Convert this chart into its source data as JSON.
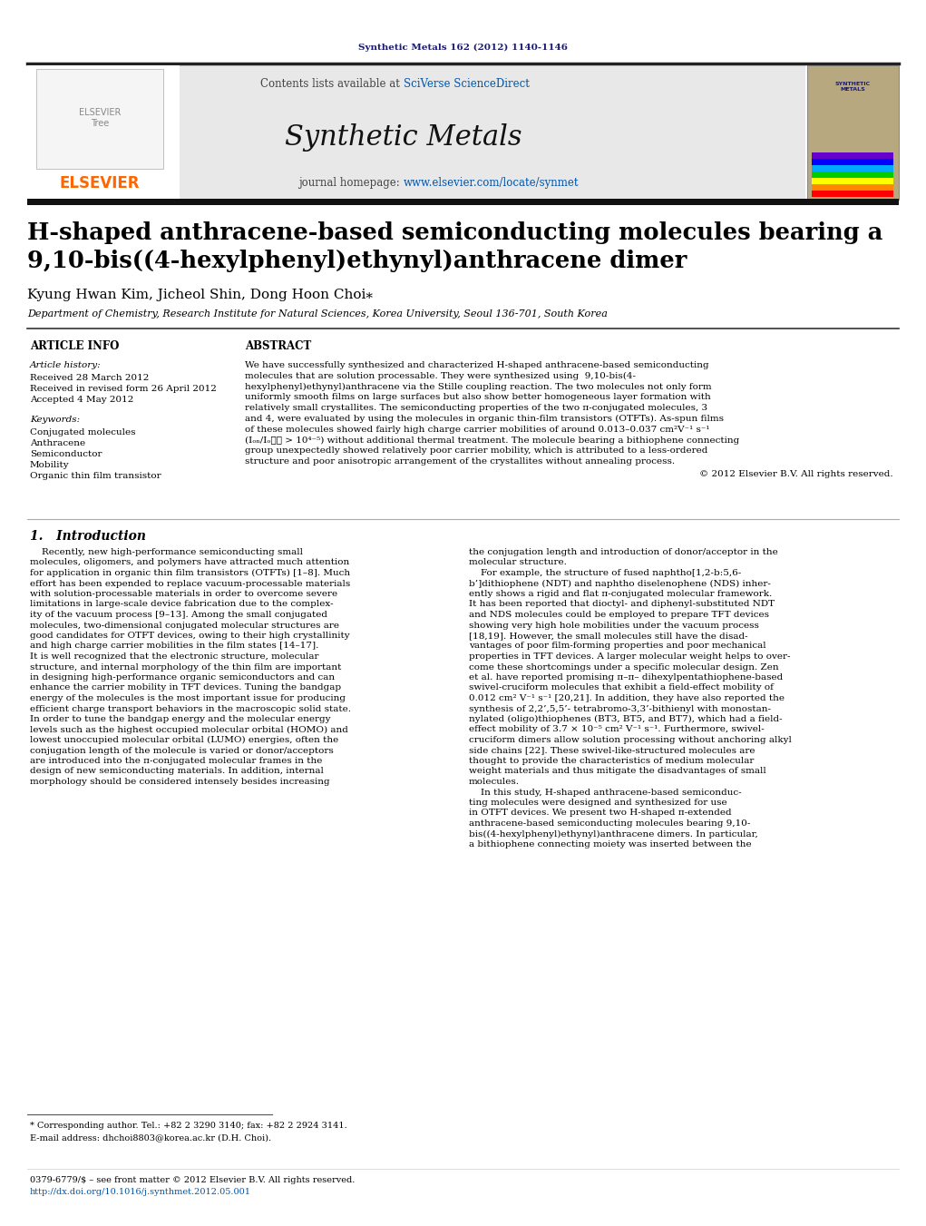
{
  "journal_ref": "Synthetic Metals 162 (2012) 1140-1146",
  "journal_ref_color": "#1a1a6e",
  "contents_text": "Contents lists available at ",
  "sciverse_text": "SciVerse ScienceDirect",
  "journal_name": "Synthetic Metals",
  "journal_homepage_prefix": "journal homepage: ",
  "journal_url": "www.elsevier.com/locate/synmet",
  "elsevier_color": "#FF6600",
  "link_color": "#0055AA",
  "paper_title_line1": "H-shaped anthracene-based semiconducting molecules bearing a",
  "paper_title_line2": "9,10-bis((4-hexylphenyl)ethynyl)anthracene dimer",
  "authors": "Kyung Hwan Kim, Jicheol Shin, Dong Hoon Choi",
  "affiliation": "Department of Chemistry, Research Institute for Natural Sciences, Korea University, Seoul 136-701, South Korea",
  "section_article_info": "ARTICLE INFO",
  "section_abstract": "ABSTRACT",
  "article_history_label": "Article history:",
  "received_label": "Received 28 March 2012",
  "received_revised": "Received in revised form 26 April 2012",
  "accepted": "Accepted 4 May 2012",
  "keywords_label": "Keywords:",
  "kw1": "Conjugated molecules",
  "kw2": "Anthracene",
  "kw3": "Semiconductor",
  "kw4": "Mobility",
  "kw5": "Organic thin film transistor",
  "copyright_text": "© 2012 Elsevier B.V. All rights reserved.",
  "section1_title": "1.   Introduction",
  "footnote_star": "* Corresponding author. Tel.: +82 2 3290 3140; fax: +82 2 2924 3141.",
  "footnote_email": "E-mail address: dhchoi8803@korea.ac.kr (D.H. Choi).",
  "issn_text": "0379-6779/$ – see front matter © 2012 Elsevier B.V. All rights reserved.",
  "doi_text": "http://dx.doi.org/10.1016/j.synthmet.2012.05.001",
  "header_bg": "#e8e8e8",
  "abstract_lines": [
    "We have successfully synthesized and characterized H-shaped anthracene-based semiconducting",
    "molecules that are solution processable. They were synthesized using  9,10-bis(4-",
    "hexylphenyl)ethynyl)anthracene via the Stille coupling reaction. The two molecules not only form",
    "uniformly smooth films on large surfaces but also show better homogeneous layer formation with",
    "relatively small crystallites. The semiconducting properties of the two π-conjugated molecules, 3",
    "and 4, were evaluated by using the molecules in organic thin-film transistors (OTFTs). As-spun films",
    "of these molecules showed fairly high charge carrier mobilities of around 0.013–0.037 cm²V⁻¹ s⁻¹",
    "(Iₒₙ/Iₒ⁦⁦ > 10⁴⁻⁵) without additional thermal treatment. The molecule bearing a bithiophene connecting",
    "group unexpectedly showed relatively poor carrier mobility, which is attributed to a less-ordered",
    "structure and poor anisotropic arrangement of the crystallites without annealing process."
  ],
  "col1_lines": [
    "    Recently, new high-performance semiconducting small",
    "molecules, oligomers, and polymers have attracted much attention",
    "for application in organic thin film transistors (OTFTs) [1–8]. Much",
    "effort has been expended to replace vacuum-processable materials",
    "with solution-processable materials in order to overcome severe",
    "limitations in large-scale device fabrication due to the complex-",
    "ity of the vacuum process [9–13]. Among the small conjugated",
    "molecules, two-dimensional conjugated molecular structures are",
    "good candidates for OTFT devices, owing to their high crystallinity",
    "and high charge carrier mobilities in the film states [14–17].",
    "It is well recognized that the electronic structure, molecular",
    "structure, and internal morphology of the thin film are important",
    "in designing high-performance organic semiconductors and can",
    "enhance the carrier mobility in TFT devices. Tuning the bandgap",
    "energy of the molecules is the most important issue for producing",
    "efficient charge transport behaviors in the macroscopic solid state.",
    "In order to tune the bandgap energy and the molecular energy",
    "levels such as the highest occupied molecular orbital (HOMO) and",
    "lowest unoccupied molecular orbital (LUMO) energies, often the",
    "conjugation length of the molecule is varied or donor/acceptors",
    "are introduced into the π-conjugated molecular frames in the",
    "design of new semiconducting materials. In addition, internal",
    "morphology should be considered intensely besides increasing"
  ],
  "col2_lines": [
    "the conjugation length and introduction of donor/acceptor in the",
    "molecular structure.",
    "    For example, the structure of fused naphtho[1,2-b:5,6-",
    "b’]dithiophene (NDT) and naphtho diselenophene (NDS) inher-",
    "ently shows a rigid and flat π-conjugated molecular framework.",
    "It has been reported that dioctyl- and diphenyl-substituted NDT",
    "and NDS molecules could be employed to prepare TFT devices",
    "showing very high hole mobilities under the vacuum process",
    "[18,19]. However, the small molecules still have the disad-",
    "vantages of poor film-forming properties and poor mechanical",
    "properties in TFT devices. A larger molecular weight helps to over-",
    "come these shortcomings under a specific molecular design. Zen",
    "et al. have reported promising π–π– dihexylpentathiophene-based",
    "swivel-cruciform molecules that exhibit a field-effect mobility of",
    "0.012 cm² V⁻¹ s⁻¹ [20,21]. In addition, they have also reported the",
    "synthesis of 2,2’,5,5’- tetrabromo-3,3’-bithienyl with monostan-",
    "nylated (oligo)thiophenes (BT3, BT5, and BT7), which had a field-",
    "effect mobility of 3.7 × 10⁻⁵ cm² V⁻¹ s⁻¹. Furthermore, swivel-",
    "cruciform dimers allow solution processing without anchoring alkyl",
    "side chains [22]. These swivel-like-structured molecules are",
    "thought to provide the characteristics of medium molecular",
    "weight materials and thus mitigate the disadvantages of small",
    "molecules.",
    "    In this study, H-shaped anthracene-based semiconduc-",
    "ting molecules were designed and synthesized for use",
    "in OTFT devices. We present two H-shaped π-extended",
    "anthracene-based semiconducting molecules bearing 9,10-",
    "bis((4-hexylphenyl)ethynyl)anthracene dimers. In particular,",
    "a bithiophene connecting moiety was inserted between the"
  ]
}
